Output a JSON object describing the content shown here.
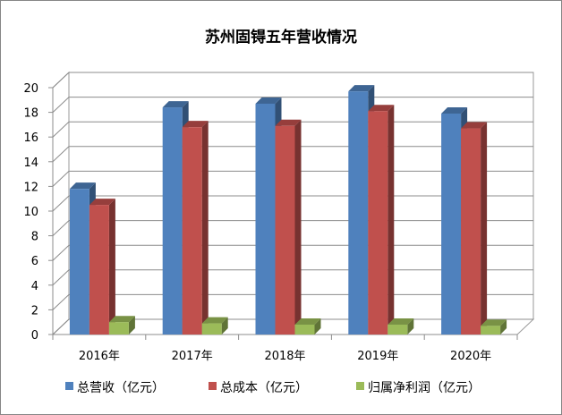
{
  "chart_data": {
    "type": "bar",
    "title": "苏州固锝五年营收情况",
    "categories": [
      "2016年",
      "2017年",
      "2018年",
      "2019年",
      "2020年"
    ],
    "series": [
      {
        "name": "总营收（亿元）",
        "values": [
          11.8,
          18.4,
          18.7,
          19.7,
          17.9
        ],
        "color": "#4F81BD"
      },
      {
        "name": "总成本（亿元）",
        "values": [
          10.5,
          16.8,
          16.9,
          18.1,
          16.7
        ],
        "color": "#C0504D"
      },
      {
        "name": "归属净利润（亿元）",
        "values": [
          1.0,
          0.9,
          0.8,
          0.8,
          0.7
        ],
        "color": "#9BBB59"
      }
    ],
    "ylim": [
      0,
      20
    ],
    "yticks": [
      0,
      2,
      4,
      6,
      8,
      10,
      12,
      14,
      16,
      18,
      20
    ],
    "grid": true,
    "legend_position": "bottom",
    "style": "3d-clustered-column"
  }
}
